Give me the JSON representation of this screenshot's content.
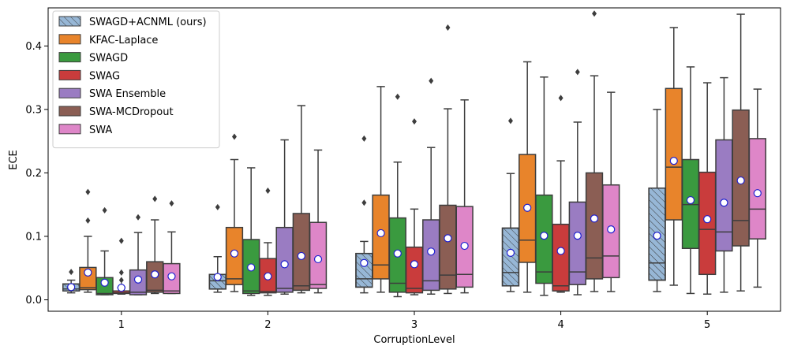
{
  "chart_data": {
    "type": "boxplot",
    "title": "",
    "xlabel": "CorruptionLevel",
    "ylabel": "ECE",
    "ylim": [
      -0.018,
      0.46
    ],
    "yticks": [
      0.0,
      0.1,
      0.2,
      0.3,
      0.4
    ],
    "ytick_labels": [
      "0.0",
      "0.1",
      "0.2",
      "0.3",
      "0.4"
    ],
    "categories": [
      "1",
      "2",
      "3",
      "4",
      "5"
    ],
    "legend_position": "top-left",
    "series": [
      {
        "name": "SWAGD+ACNML (ours)",
        "color": "#97b7d6",
        "hatch": true,
        "boxes": [
          {
            "whisker_low": 0.011,
            "q1": 0.014,
            "median": 0.017,
            "q3": 0.025,
            "whisker_high": 0.031,
            "mean": 0.02,
            "outliers": [
              0.044
            ]
          },
          {
            "whisker_low": 0.012,
            "q1": 0.017,
            "median": 0.03,
            "q3": 0.04,
            "whisker_high": 0.068,
            "mean": 0.036,
            "outliers": [
              0.146
            ]
          },
          {
            "whisker_low": 0.011,
            "q1": 0.02,
            "median": 0.033,
            "q3": 0.073,
            "whisker_high": 0.092,
            "mean": 0.058,
            "outliers": [
              0.153,
              0.254
            ]
          },
          {
            "whisker_low": 0.013,
            "q1": 0.022,
            "median": 0.043,
            "q3": 0.113,
            "whisker_high": 0.199,
            "mean": 0.074,
            "outliers": [
              0.282
            ]
          },
          {
            "whisker_low": 0.013,
            "q1": 0.031,
            "median": 0.058,
            "q3": 0.176,
            "whisker_high": 0.3,
            "mean": 0.101,
            "outliers": []
          }
        ]
      },
      {
        "name": "KFAC-Laplace",
        "color": "#e8842b",
        "hatch": false,
        "boxes": [
          {
            "whisker_low": 0.012,
            "q1": 0.016,
            "median": 0.019,
            "q3": 0.051,
            "whisker_high": 0.1,
            "mean": 0.043,
            "outliers": [
              0.125,
              0.17
            ]
          },
          {
            "whisker_low": 0.013,
            "q1": 0.024,
            "median": 0.033,
            "q3": 0.114,
            "whisker_high": 0.221,
            "mean": 0.073,
            "outliers": [
              0.257
            ]
          },
          {
            "whisker_low": 0.012,
            "q1": 0.033,
            "median": 0.055,
            "q3": 0.165,
            "whisker_high": 0.336,
            "mean": 0.105,
            "outliers": []
          },
          {
            "whisker_low": 0.012,
            "q1": 0.059,
            "median": 0.094,
            "q3": 0.229,
            "whisker_high": 0.375,
            "mean": 0.145,
            "outliers": []
          },
          {
            "whisker_low": 0.023,
            "q1": 0.126,
            "median": 0.209,
            "q3": 0.333,
            "whisker_high": 0.429,
            "mean": 0.219,
            "outliers": []
          }
        ]
      },
      {
        "name": "SWAGD",
        "color": "#3a9a3f",
        "hatch": false,
        "boxes": [
          {
            "whisker_low": 0.008,
            "q1": 0.008,
            "median": 0.01,
            "q3": 0.035,
            "whisker_high": 0.077,
            "mean": 0.027,
            "outliers": [
              0.141
            ]
          },
          {
            "whisker_low": 0.007,
            "q1": 0.01,
            "median": 0.014,
            "q3": 0.095,
            "whisker_high": 0.208,
            "mean": 0.051,
            "outliers": []
          },
          {
            "whisker_low": 0.005,
            "q1": 0.012,
            "median": 0.026,
            "q3": 0.129,
            "whisker_high": 0.217,
            "mean": 0.073,
            "outliers": [
              0.32
            ]
          },
          {
            "whisker_low": 0.007,
            "q1": 0.026,
            "median": 0.044,
            "q3": 0.165,
            "whisker_high": 0.351,
            "mean": 0.101,
            "outliers": []
          },
          {
            "whisker_low": 0.01,
            "q1": 0.081,
            "median": 0.15,
            "q3": 0.221,
            "whisker_high": 0.367,
            "mean": 0.157,
            "outliers": []
          }
        ]
      },
      {
        "name": "SWAG",
        "color": "#c93c3c",
        "hatch": false,
        "boxes": [
          {
            "whisker_low": 0.009,
            "q1": 0.01,
            "median": 0.011,
            "q3": 0.014,
            "whisker_high": 0.019,
            "mean": 0.019,
            "outliers": [
              0.022,
              0.031,
              0.043,
              0.093
            ]
          },
          {
            "whisker_low": 0.007,
            "q1": 0.011,
            "median": 0.013,
            "q3": 0.065,
            "whisker_high": 0.09,
            "mean": 0.037,
            "outliers": [
              0.172
            ]
          },
          {
            "whisker_low": 0.008,
            "q1": 0.011,
            "median": 0.018,
            "q3": 0.083,
            "whisker_high": 0.143,
            "mean": 0.056,
            "outliers": [
              0.281
            ]
          },
          {
            "whisker_low": 0.012,
            "q1": 0.014,
            "median": 0.022,
            "q3": 0.119,
            "whisker_high": 0.219,
            "mean": 0.077,
            "outliers": [
              0.318
            ]
          },
          {
            "whisker_low": 0.009,
            "q1": 0.04,
            "median": 0.111,
            "q3": 0.201,
            "whisker_high": 0.342,
            "mean": 0.127,
            "outliers": []
          }
        ]
      },
      {
        "name": "SWA Ensemble",
        "color": "#9a7cc2",
        "hatch": false,
        "boxes": [
          {
            "whisker_low": 0.008,
            "q1": 0.008,
            "median": 0.012,
            "q3": 0.047,
            "whisker_high": 0.106,
            "mean": 0.032,
            "outliers": [
              0.13
            ]
          },
          {
            "whisker_low": 0.009,
            "q1": 0.012,
            "median": 0.018,
            "q3": 0.114,
            "whisker_high": 0.252,
            "mean": 0.056,
            "outliers": []
          },
          {
            "whisker_low": 0.009,
            "q1": 0.015,
            "median": 0.03,
            "q3": 0.126,
            "whisker_high": 0.24,
            "mean": 0.076,
            "outliers": [
              0.345
            ]
          },
          {
            "whisker_low": 0.008,
            "q1": 0.024,
            "median": 0.044,
            "q3": 0.154,
            "whisker_high": 0.28,
            "mean": 0.101,
            "outliers": [
              0.359
            ]
          },
          {
            "whisker_low": 0.012,
            "q1": 0.077,
            "median": 0.107,
            "q3": 0.252,
            "whisker_high": 0.35,
            "mean": 0.153,
            "outliers": []
          }
        ]
      },
      {
        "name": "SWA-MCDropout",
        "color": "#8b5e54",
        "hatch": false,
        "boxes": [
          {
            "whisker_low": 0.01,
            "q1": 0.012,
            "median": 0.015,
            "q3": 0.06,
            "whisker_high": 0.126,
            "mean": 0.04,
            "outliers": [
              0.159
            ]
          },
          {
            "whisker_low": 0.011,
            "q1": 0.015,
            "median": 0.022,
            "q3": 0.136,
            "whisker_high": 0.306,
            "mean": 0.069,
            "outliers": []
          },
          {
            "whisker_low": 0.01,
            "q1": 0.017,
            "median": 0.039,
            "q3": 0.149,
            "whisker_high": 0.301,
            "mean": 0.097,
            "outliers": [
              0.429
            ]
          },
          {
            "whisker_low": 0.013,
            "q1": 0.033,
            "median": 0.066,
            "q3": 0.2,
            "whisker_high": 0.353,
            "mean": 0.128,
            "outliers": [
              0.451
            ]
          },
          {
            "whisker_low": 0.014,
            "q1": 0.085,
            "median": 0.125,
            "q3": 0.299,
            "whisker_high": 0.45,
            "mean": 0.188,
            "outliers": []
          }
        ]
      },
      {
        "name": "SWA",
        "color": "#de86c8",
        "hatch": false,
        "boxes": [
          {
            "whisker_low": 0.01,
            "q1": 0.01,
            "median": 0.014,
            "q3": 0.057,
            "whisker_high": 0.107,
            "mean": 0.037,
            "outliers": [
              0.152
            ]
          },
          {
            "whisker_low": 0.011,
            "q1": 0.018,
            "median": 0.024,
            "q3": 0.122,
            "whisker_high": 0.236,
            "mean": 0.064,
            "outliers": []
          },
          {
            "whisker_low": 0.011,
            "q1": 0.02,
            "median": 0.04,
            "q3": 0.147,
            "whisker_high": 0.315,
            "mean": 0.085,
            "outliers": []
          },
          {
            "whisker_low": 0.013,
            "q1": 0.035,
            "median": 0.069,
            "q3": 0.181,
            "whisker_high": 0.327,
            "mean": 0.111,
            "outliers": []
          },
          {
            "whisker_low": 0.02,
            "q1": 0.096,
            "median": 0.143,
            "q3": 0.254,
            "whisker_high": 0.332,
            "mean": 0.168,
            "outliers": []
          }
        ]
      }
    ]
  }
}
